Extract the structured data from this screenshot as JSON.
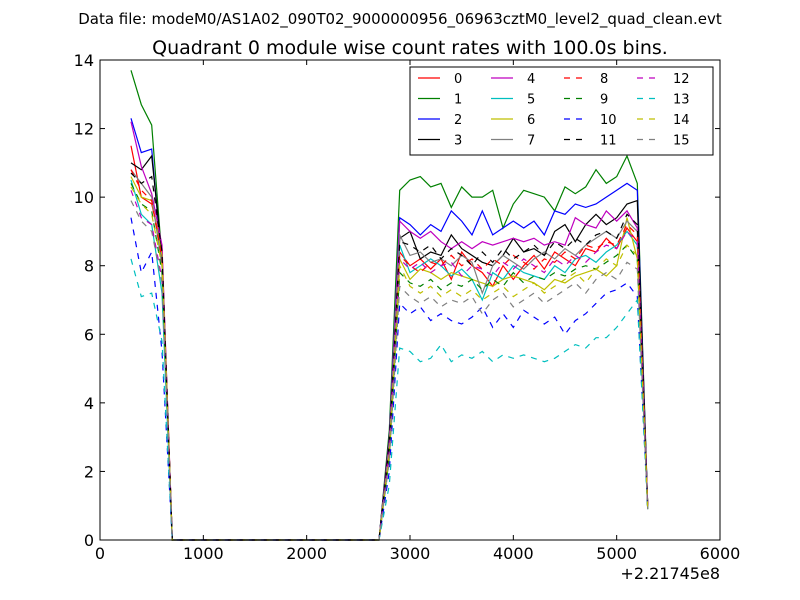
{
  "header": {
    "data_file": "Data file: modeM0/AS1A02_090T02_9000000956_06963cztM0_level2_quad_clean.evt"
  },
  "chart_data": {
    "type": "line",
    "title": "Quadrant 0 module wise count rates with 100.0s bins.",
    "xlabel": "",
    "ylabel": "",
    "x_offset_label": "+2.21745e8",
    "xlim": [
      0,
      6000
    ],
    "ylim": [
      0,
      14
    ],
    "x_ticks": [
      0,
      1000,
      2000,
      3000,
      4000,
      5000,
      6000
    ],
    "y_ticks": [
      0,
      2,
      4,
      6,
      8,
      10,
      12,
      14
    ],
    "legend_position": "top-right",
    "legend_columns": 4,
    "x": [
      300,
      400,
      500,
      600,
      700,
      800,
      900,
      1000,
      1100,
      1200,
      1300,
      1400,
      1500,
      1600,
      1700,
      1800,
      1900,
      2000,
      2100,
      2200,
      2300,
      2400,
      2500,
      2600,
      2700,
      2800,
      2900,
      3000,
      3100,
      3200,
      3300,
      3400,
      3500,
      3600,
      3700,
      3800,
      3900,
      4000,
      4100,
      4200,
      4300,
      4400,
      4500,
      4600,
      4700,
      4800,
      4900,
      5000,
      5100,
      5200,
      5300
    ],
    "series": [
      {
        "name": "0",
        "color": "#ff0000",
        "dash": "solid",
        "values": [
          11.5,
          10.0,
          9.8,
          8.5,
          0.0,
          0,
          0,
          0,
          0,
          0,
          0,
          0,
          0,
          0,
          0,
          0,
          0,
          0,
          0,
          0,
          0,
          0,
          0,
          0,
          0.0,
          2.6,
          8.4,
          8.0,
          8.2,
          7.9,
          8.2,
          7.6,
          8.4,
          8.0,
          7.8,
          7.4,
          8.0,
          7.6,
          8.0,
          8.3,
          7.9,
          8.4,
          8.2,
          8.0,
          8.5,
          8.4,
          8.8,
          8.5,
          9.1,
          8.7,
          1.0
        ]
      },
      {
        "name": "1",
        "color": "#008000",
        "dash": "solid",
        "values": [
          13.7,
          12.7,
          12.1,
          8.2,
          0.0,
          0,
          0,
          0,
          0,
          0,
          0,
          0,
          0,
          0,
          0,
          0,
          0,
          0,
          0,
          0,
          0,
          0,
          0,
          0,
          0.0,
          3.2,
          10.2,
          10.5,
          10.6,
          10.3,
          10.4,
          9.7,
          10.3,
          10.0,
          10.0,
          10.2,
          9.1,
          9.8,
          10.2,
          10.1,
          10.0,
          9.6,
          10.3,
          10.1,
          10.3,
          10.8,
          10.4,
          10.6,
          11.2,
          10.4,
          1.0
        ]
      },
      {
        "name": "2",
        "color": "#0000ff",
        "dash": "solid",
        "values": [
          12.3,
          11.3,
          11.4,
          8.0,
          0.0,
          0,
          0,
          0,
          0,
          0,
          0,
          0,
          0,
          0,
          0,
          0,
          0,
          0,
          0,
          0,
          0,
          0,
          0,
          0,
          0.0,
          3.0,
          9.4,
          9.2,
          8.9,
          9.2,
          9.0,
          9.6,
          9.3,
          8.9,
          9.6,
          8.9,
          9.1,
          9.3,
          9.1,
          9.3,
          8.9,
          9.6,
          9.5,
          9.8,
          9.7,
          9.8,
          10.0,
          10.2,
          10.4,
          10.2,
          0.9
        ]
      },
      {
        "name": "3",
        "color": "#000000",
        "dash": "solid",
        "values": [
          11.0,
          10.8,
          11.2,
          8.3,
          0.0,
          0,
          0,
          0,
          0,
          0,
          0,
          0,
          0,
          0,
          0,
          0,
          0,
          0,
          0,
          0,
          0,
          0,
          0,
          0,
          0.0,
          3.0,
          8.8,
          9.0,
          8.2,
          8.4,
          8.3,
          8.9,
          8.5,
          8.3,
          8.1,
          8.0,
          8.3,
          8.8,
          8.4,
          8.5,
          8.3,
          9.0,
          9.2,
          8.7,
          9.2,
          9.5,
          9.2,
          9.4,
          9.8,
          9.9,
          1.0
        ]
      },
      {
        "name": "4",
        "color": "#bf00bf",
        "dash": "solid",
        "values": [
          12.2,
          10.9,
          10.1,
          8.6,
          0.0,
          0,
          0,
          0,
          0,
          0,
          0,
          0,
          0,
          0,
          0,
          0,
          0,
          0,
          0,
          0,
          0,
          0,
          0,
          0,
          0.0,
          2.9,
          9.3,
          9.0,
          8.8,
          9.0,
          8.7,
          8.5,
          8.7,
          8.5,
          8.7,
          8.6,
          8.7,
          8.8,
          8.7,
          8.8,
          8.6,
          8.7,
          8.6,
          9.4,
          9.2,
          9.1,
          9.6,
          9.3,
          9.6,
          9.1,
          1.0
        ]
      },
      {
        "name": "5",
        "color": "#00bfbf",
        "dash": "solid",
        "values": [
          10.5,
          9.5,
          9.2,
          7.2,
          0.0,
          0,
          0,
          0,
          0,
          0,
          0,
          0,
          0,
          0,
          0,
          0,
          0,
          0,
          0,
          0,
          0,
          0,
          0,
          0,
          0.0,
          2.5,
          8.6,
          7.8,
          8.0,
          8.2,
          8.0,
          7.7,
          7.9,
          7.6,
          7.0,
          7.8,
          7.6,
          8.0,
          7.8,
          7.7,
          7.6,
          8.0,
          7.8,
          8.2,
          8.3,
          8.1,
          8.4,
          8.6,
          9.0,
          8.6,
          0.9
        ]
      },
      {
        "name": "6",
        "color": "#bfbf00",
        "dash": "solid",
        "values": [
          10.6,
          10.0,
          9.9,
          8.3,
          0.0,
          0,
          0,
          0,
          0,
          0,
          0,
          0,
          0,
          0,
          0,
          0,
          0,
          0,
          0,
          0,
          0,
          0,
          0,
          0,
          0.0,
          2.6,
          8.2,
          7.6,
          7.9,
          7.8,
          7.6,
          7.8,
          7.7,
          7.6,
          7.5,
          7.4,
          7.6,
          7.7,
          7.6,
          7.5,
          7.3,
          7.6,
          7.5,
          7.7,
          7.8,
          7.9,
          7.7,
          8.0,
          9.4,
          8.2,
          0.9
        ]
      },
      {
        "name": "7",
        "color": "#808080",
        "dash": "solid",
        "values": [
          10.8,
          10.4,
          10.0,
          8.0,
          0.0,
          0,
          0,
          0,
          0,
          0,
          0,
          0,
          0,
          0,
          0,
          0,
          0,
          0,
          0,
          0,
          0,
          0,
          0,
          0,
          0.0,
          2.8,
          8.9,
          8.3,
          8.4,
          8.1,
          8.2,
          8.0,
          8.3,
          8.1,
          7.2,
          8.0,
          8.3,
          8.1,
          7.9,
          8.2,
          8.4,
          8.2,
          8.5,
          8.3,
          8.6,
          8.8,
          9.0,
          8.8,
          9.3,
          9.0,
          1.0
        ]
      },
      {
        "name": "8",
        "color": "#ff0000",
        "dash": "dashed",
        "values": [
          10.8,
          10.2,
          9.9,
          8.2,
          0.0,
          0,
          0,
          0,
          0,
          0,
          0,
          0,
          0,
          0,
          0,
          0,
          0,
          0,
          0,
          0,
          0,
          0,
          0,
          0,
          0.0,
          2.6,
          8.3,
          8.0,
          7.8,
          8.1,
          8.0,
          8.3,
          8.0,
          8.2,
          7.9,
          8.2,
          8.0,
          8.3,
          8.1,
          7.9,
          8.2,
          8.1,
          8.4,
          8.2,
          8.6,
          8.5,
          8.7,
          8.6,
          9.2,
          8.9,
          1.0
        ]
      },
      {
        "name": "9",
        "color": "#008000",
        "dash": "dashed",
        "values": [
          10.4,
          9.8,
          9.6,
          7.8,
          0.0,
          0,
          0,
          0,
          0,
          0,
          0,
          0,
          0,
          0,
          0,
          0,
          0,
          0,
          0,
          0,
          0,
          0,
          0,
          0,
          0.0,
          2.4,
          7.8,
          7.5,
          7.4,
          7.6,
          7.3,
          7.5,
          7.4,
          7.6,
          7.3,
          7.6,
          7.4,
          7.8,
          7.5,
          7.7,
          7.6,
          7.8,
          7.7,
          7.9,
          8.0,
          7.9,
          8.1,
          8.3,
          8.6,
          8.2,
          0.9
        ]
      },
      {
        "name": "10",
        "color": "#0000ff",
        "dash": "dashed",
        "values": [
          9.4,
          7.8,
          8.4,
          5.5,
          0.0,
          0,
          0,
          0,
          0,
          0,
          0,
          0,
          0,
          0,
          0,
          0,
          0,
          0,
          0,
          0,
          0,
          0,
          0,
          0,
          0.0,
          2.0,
          6.9,
          6.6,
          6.8,
          6.4,
          6.6,
          6.4,
          6.3,
          6.5,
          6.8,
          6.2,
          6.6,
          6.2,
          6.7,
          6.5,
          6.3,
          6.5,
          6.0,
          6.4,
          6.6,
          6.9,
          7.2,
          7.3,
          7.5,
          7.1,
          0.9
        ]
      },
      {
        "name": "11",
        "color": "#000000",
        "dash": "dashed",
        "values": [
          10.7,
          10.4,
          10.6,
          8.4,
          0.0,
          0,
          0,
          0,
          0,
          0,
          0,
          0,
          0,
          0,
          0,
          0,
          0,
          0,
          0,
          0,
          0,
          0,
          0,
          0,
          0.0,
          2.8,
          8.7,
          8.6,
          8.4,
          8.6,
          8.2,
          8.5,
          8.3,
          8.0,
          8.4,
          8.1,
          8.5,
          8.2,
          8.4,
          8.6,
          8.3,
          8.7,
          8.5,
          8.8,
          8.6,
          8.9,
          9.0,
          8.8,
          9.5,
          9.2,
          1.0
        ]
      },
      {
        "name": "12",
        "color": "#bf00bf",
        "dash": "dashed",
        "values": [
          10.2,
          9.4,
          9.2,
          7.6,
          0.0,
          0,
          0,
          0,
          0,
          0,
          0,
          0,
          0,
          0,
          0,
          0,
          0,
          0,
          0,
          0,
          0,
          0,
          0,
          0,
          0.0,
          2.6,
          8.2,
          7.9,
          8.1,
          7.8,
          8.0,
          8.1,
          7.7,
          8.0,
          7.9,
          7.7,
          8.1,
          7.9,
          8.2,
          8.0,
          7.8,
          8.2,
          8.0,
          8.3,
          8.1,
          8.4,
          8.6,
          8.5,
          9.0,
          8.7,
          1.0
        ]
      },
      {
        "name": "13",
        "color": "#00bfbf",
        "dash": "dashed",
        "values": [
          8.2,
          7.1,
          7.2,
          5.8,
          0.0,
          0,
          0,
          0,
          0,
          0,
          0,
          0,
          0,
          0,
          0,
          0,
          0,
          0,
          0,
          0,
          0,
          0,
          0,
          0,
          0.0,
          1.6,
          5.6,
          5.5,
          5.2,
          5.3,
          5.7,
          5.2,
          5.4,
          5.3,
          5.5,
          5.2,
          5.4,
          5.3,
          5.4,
          5.3,
          5.2,
          5.3,
          5.5,
          5.7,
          5.6,
          5.9,
          5.9,
          6.2,
          6.6,
          7.0,
          0.9
        ]
      },
      {
        "name": "14",
        "color": "#bfbf00",
        "dash": "dashed",
        "values": [
          10.3,
          9.8,
          9.5,
          8.0,
          0.0,
          0,
          0,
          0,
          0,
          0,
          0,
          0,
          0,
          0,
          0,
          0,
          0,
          0,
          0,
          0,
          0,
          0,
          0,
          0,
          0.0,
          2.5,
          8.0,
          7.4,
          7.2,
          7.4,
          7.1,
          7.3,
          7.1,
          7.3,
          7.0,
          7.2,
          7.4,
          7.1,
          7.3,
          7.5,
          7.2,
          7.4,
          7.6,
          7.8,
          7.5,
          7.9,
          8.2,
          8.0,
          8.6,
          8.3,
          0.9
        ]
      },
      {
        "name": "15",
        "color": "#808080",
        "dash": "dashed",
        "values": [
          9.9,
          9.3,
          9.0,
          7.5,
          0.0,
          0,
          0,
          0,
          0,
          0,
          0,
          0,
          0,
          0,
          0,
          0,
          0,
          0,
          0,
          0,
          0,
          0,
          0,
          0,
          0.0,
          2.3,
          7.4,
          7.1,
          6.9,
          7.1,
          6.8,
          7.0,
          6.9,
          7.1,
          6.6,
          7.0,
          7.2,
          6.8,
          7.0,
          7.2,
          6.9,
          7.1,
          7.3,
          7.5,
          7.2,
          7.6,
          7.8,
          7.6,
          8.1,
          7.9,
          0.9
        ]
      }
    ]
  }
}
